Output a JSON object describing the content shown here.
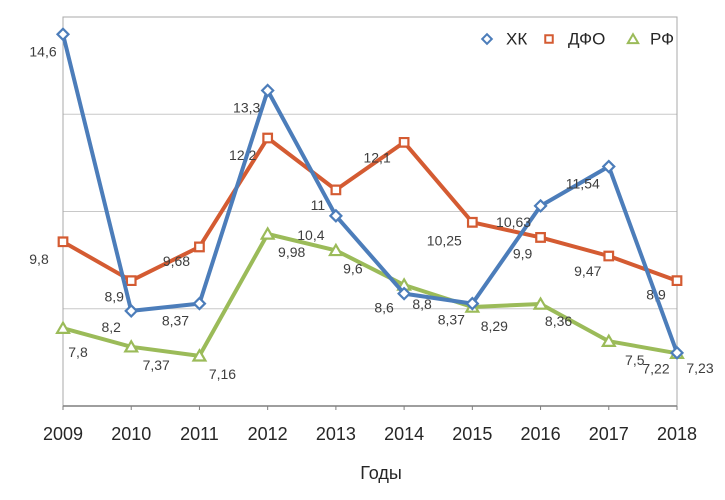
{
  "chart_data": {
    "type": "line",
    "title": "",
    "xlabel": "Годы",
    "ylabel": "",
    "categories": [
      "2009",
      "2010",
      "2011",
      "2012",
      "2013",
      "2014",
      "2015",
      "2016",
      "2017",
      "2018"
    ],
    "ylim": [
      6,
      15
    ],
    "grid": true,
    "gridline_count": 3,
    "legend_position": "top-right",
    "legend_order": [
      "ХК",
      "ДФО",
      "РФ"
    ],
    "series": [
      {
        "name": "ДФО",
        "slug": "dfo",
        "color": "#D45B32",
        "marker": "square",
        "values": [
          9.8,
          8.9,
          9.68,
          12.2,
          11,
          12.1,
          10.25,
          9.9,
          9.47,
          8.9
        ],
        "labels": [
          "9,8",
          "8,9",
          "9,68",
          "12,2",
          "11",
          "12,1",
          "10,25",
          "9,9",
          "9,47",
          "8,9"
        ],
        "label_offsets": [
          [
            -24,
            17
          ],
          [
            -17,
            16
          ],
          [
            -23,
            14
          ],
          [
            -25,
            17
          ],
          [
            -18,
            15
          ],
          [
            -27,
            15
          ],
          [
            -28,
            18
          ],
          [
            -18,
            16
          ],
          [
            -21,
            15
          ],
          [
            -21,
            14
          ]
        ]
      },
      {
        "name": "РФ",
        "slug": "rf",
        "color": "#9BBB59",
        "marker": "triangle",
        "values": [
          7.8,
          7.37,
          7.16,
          9.98,
          9.6,
          8.8,
          8.29,
          8.36,
          7.5,
          7.22
        ],
        "labels": [
          "7,8",
          "7,37",
          "7,16",
          "9,98",
          "9,6",
          "8,8",
          "8,29",
          "8,36",
          "7,5",
          "7,22"
        ],
        "label_offsets": [
          [
            15,
            24
          ],
          [
            25,
            18
          ],
          [
            23,
            18
          ],
          [
            24,
            18
          ],
          [
            17,
            18
          ],
          [
            18,
            19
          ],
          [
            22,
            19
          ],
          [
            18,
            17
          ],
          [
            26,
            19
          ],
          [
            -21,
            15
          ]
        ]
      },
      {
        "name": "ХК",
        "slug": "hk",
        "color": "#4C7DBA",
        "marker": "diamond",
        "values": [
          14.6,
          8.2,
          8.37,
          13.3,
          10.4,
          8.6,
          8.37,
          10.63,
          11.54,
          7.23
        ],
        "labels": [
          "14,6",
          "8,2",
          "8,37",
          "13,3",
          "10,4",
          "8,6",
          "8,37",
          "10,63",
          "11,54",
          "7,23"
        ],
        "label_offsets": [
          [
            -20,
            17
          ],
          [
            -20,
            16
          ],
          [
            -24,
            17
          ],
          [
            -21,
            17
          ],
          [
            -25,
            19
          ],
          [
            -20,
            14
          ],
          [
            -21,
            16
          ],
          [
            -27,
            16
          ],
          [
            -26,
            17
          ],
          [
            23,
            15
          ]
        ]
      }
    ],
    "colors": {
      "gridline": "#C8C8C8",
      "plot_border": "#A8A8A8",
      "axis_line": "#7F7F7F",
      "data_label": "#3E3E3E",
      "axis_text": "#262626",
      "marker_fill": "#FFFFFF"
    }
  }
}
